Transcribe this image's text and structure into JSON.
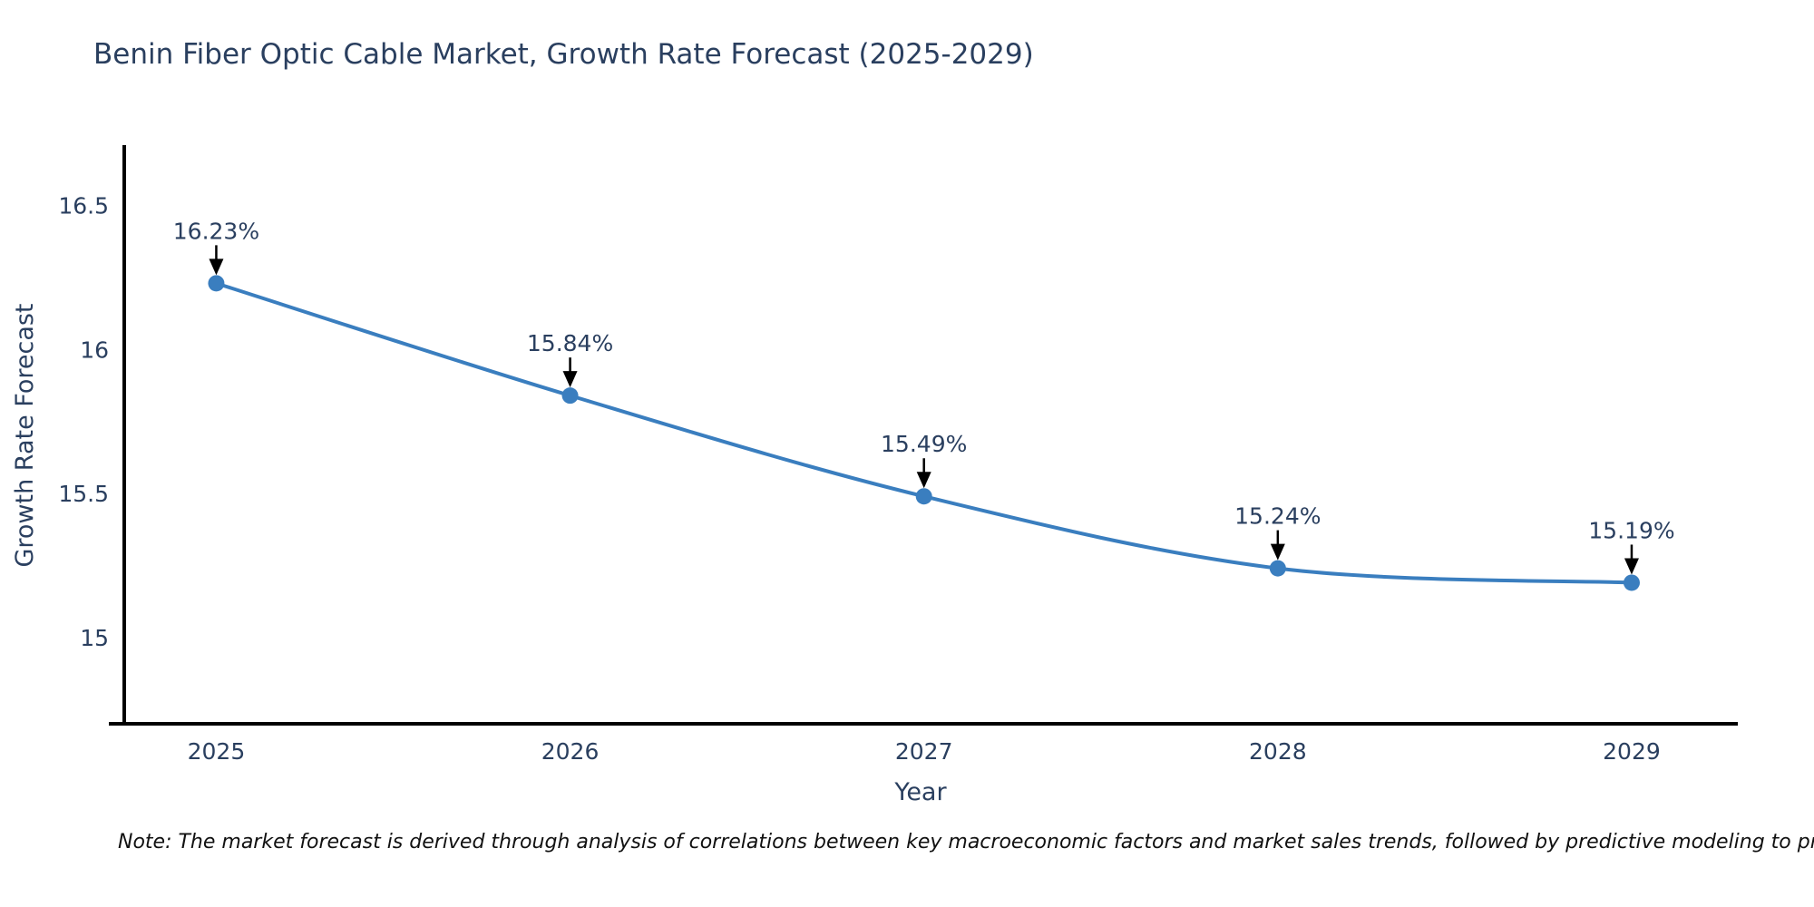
{
  "chart_data": {
    "type": "line",
    "title": "Benin Fiber Optic Cable Market, Growth Rate Forecast (2025-2029)",
    "x": [
      2025,
      2026,
      2027,
      2028,
      2029
    ],
    "xtick_labels": [
      "2025",
      "2026",
      "2027",
      "2028",
      "2029"
    ],
    "series": [
      {
        "name": "Growth Rate Forecast",
        "values": [
          16.23,
          15.84,
          15.49,
          15.24,
          15.19
        ]
      }
    ],
    "point_labels": [
      "16.23%",
      "15.84%",
      "15.49%",
      "15.24%",
      "15.19%"
    ],
    "xlabel": "Year",
    "ylabel": "Growth Rate Forecast",
    "yticks": [
      15,
      15.5,
      16,
      16.5
    ],
    "ytick_labels": [
      "15",
      "15.5",
      "16",
      "16.5"
    ],
    "xlim": [
      2024.74,
      2029.3
    ],
    "ylim": [
      14.7,
      16.71
    ],
    "grid": false,
    "legend": "none",
    "curve": "spline",
    "line_color": "#3a7ebf",
    "marker_color": "#3a7ebf",
    "axis_color": "#000000",
    "arrow_color": "#000000",
    "text_color": "#2a3f5f"
  },
  "note": {
    "text": "Note: The market forecast is derived through analysis of correlations between key macroeconomic factors and market sales trends, followed by predictive modeling to project future sal"
  }
}
